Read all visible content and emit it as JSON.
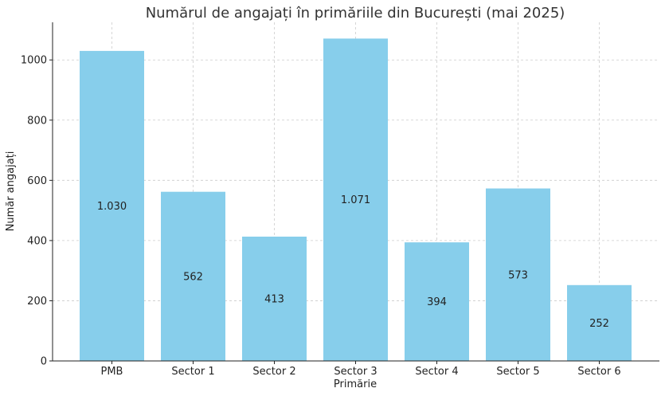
{
  "chart_data": {
    "type": "bar",
    "title": "Numărul de angajați în primăriile din București (mai 2025)",
    "xlabel": "Primărie",
    "ylabel": "Număr angajați",
    "categories": [
      "PMB",
      "Sector 1",
      "Sector 2",
      "Sector 3",
      "Sector 4",
      "Sector 5",
      "Sector 6"
    ],
    "values": [
      1030,
      562,
      413,
      1071,
      394,
      573,
      252
    ],
    "data_labels": [
      "1.030",
      "562",
      "413",
      "1.071",
      "394",
      "573",
      "252"
    ],
    "ylim": [
      0,
      1125
    ],
    "yticks": [
      0,
      200,
      400,
      600,
      800,
      1000
    ],
    "grid": true,
    "bar_color": "#87ceeb"
  }
}
